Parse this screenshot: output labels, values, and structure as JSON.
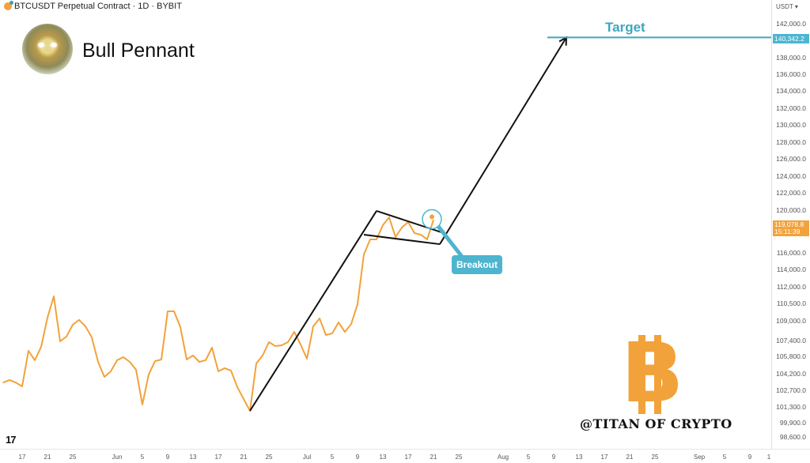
{
  "header": {
    "symbol_line": "BTCUSDT Perpetual Contract · 1D · BYBIT"
  },
  "title": "Bull Pennant",
  "watermark": "@TITAN OF CRYPTO",
  "tv_logo": "17",
  "price_axis": {
    "currency": "USDT",
    "target_price": "140,342.2",
    "current_price": "119,078.8",
    "countdown": "15:11:39"
  },
  "annotations": {
    "target_label": "Target",
    "breakout_label": "Breakout"
  },
  "colors": {
    "price_line": "#f2a23a",
    "target": "#3ea6c2",
    "breakout": "#4db5cf",
    "drawing": "#111111"
  },
  "chart_data": {
    "type": "line",
    "title": "",
    "y_scale": "log",
    "start_date": "May 14",
    "y_ticks": [
      "142,000.0",
      "140,000.0",
      "138,000.0",
      "136,000.0",
      "134,000.0",
      "132,000.0",
      "130,000.0",
      "128,000.0",
      "126,000.0",
      "124,000.0",
      "122,000.0",
      "120,000.0",
      "116,000.0",
      "114,000.0",
      "112,000.0",
      "110,500.0",
      "109,000.0",
      "107,400.0",
      "105,800.0",
      "104,200.0",
      "102,700.0",
      "101,300.0",
      "99,900.0",
      "98,600.0"
    ],
    "x_ticks": [
      {
        "label": "17",
        "date": "May 17"
      },
      {
        "label": "21",
        "date": "May 21"
      },
      {
        "label": "25",
        "date": "May 25"
      },
      {
        "label": "Jun",
        "date": "Jun 1"
      },
      {
        "label": "5",
        "date": "Jun 5"
      },
      {
        "label": "9",
        "date": "Jun 9"
      },
      {
        "label": "13",
        "date": "Jun 13"
      },
      {
        "label": "17",
        "date": "Jun 17"
      },
      {
        "label": "21",
        "date": "Jun 21"
      },
      {
        "label": "25",
        "date": "Jun 25"
      },
      {
        "label": "Jul",
        "date": "Jul 1"
      },
      {
        "label": "5",
        "date": "Jul 5"
      },
      {
        "label": "9",
        "date": "Jul 9"
      },
      {
        "label": "13",
        "date": "Jul 13"
      },
      {
        "label": "17",
        "date": "Jul 17"
      },
      {
        "label": "21",
        "date": "Jul 21"
      },
      {
        "label": "25",
        "date": "Jul 25"
      },
      {
        "label": "Aug",
        "date": "Aug 1"
      },
      {
        "label": "5",
        "date": "Aug 5"
      },
      {
        "label": "9",
        "date": "Aug 9"
      },
      {
        "label": "13",
        "date": "Aug 13"
      },
      {
        "label": "17",
        "date": "Aug 17"
      },
      {
        "label": "21",
        "date": "Aug 21"
      },
      {
        "label": "25",
        "date": "Aug 25"
      },
      {
        "label": "Sep",
        "date": "Sep 1"
      },
      {
        "label": "5",
        "date": "Sep 5"
      },
      {
        "label": "9",
        "date": "Sep 9"
      },
      {
        "label": "1",
        "date": "Sep 12"
      }
    ],
    "series": [
      {
        "values": [
          103400,
          103630,
          103400,
          103060,
          106360,
          105440,
          106760,
          109270,
          111140,
          107320,
          107720,
          108680,
          109070,
          108550,
          107660,
          105290,
          103910,
          104420,
          105440,
          105730,
          105290,
          104560,
          101500,
          104130,
          105360,
          105510,
          109820,
          109820,
          108490,
          105510,
          105880,
          105290,
          105440,
          106680,
          104420,
          104710,
          104490,
          102990,
          101970,
          100950,
          105150,
          105880,
          107240,
          106840,
          106920,
          107240,
          108100,
          107000,
          105580,
          108550,
          109200,
          107850,
          107980,
          108870,
          108100,
          108740,
          110430,
          115810,
          117260,
          117260,
          118590,
          119330,
          117480,
          118370,
          118890,
          117850,
          117700,
          117260,
          119078.8
        ]
      }
    ],
    "drawings": {
      "flagpole": [
        {
          "date": "Jun 22",
          "price": 100950
        },
        {
          "date": "Jul 12",
          "price": 119930
        }
      ],
      "pennant_upper": [
        {
          "date": "Jul 12",
          "price": 119930
        },
        {
          "date": "Jul 23",
          "price": 117780
        }
      ],
      "pennant_lower": [
        {
          "date": "Jul 10",
          "price": 117700
        },
        {
          "date": "Jul 22",
          "price": 116810
        }
      ],
      "projection_arrow": [
        {
          "date": "Jul 22",
          "price": 116810
        },
        {
          "date": "Jul 23",
          "price": 117780
        },
        {
          "date": "Aug 11",
          "price": 140342.2
        }
      ],
      "target_line": {
        "from": "Aug 8",
        "price": 140342.2
      },
      "breakout_point": {
        "date": "Jul 21",
        "price": 119078.8
      }
    }
  }
}
